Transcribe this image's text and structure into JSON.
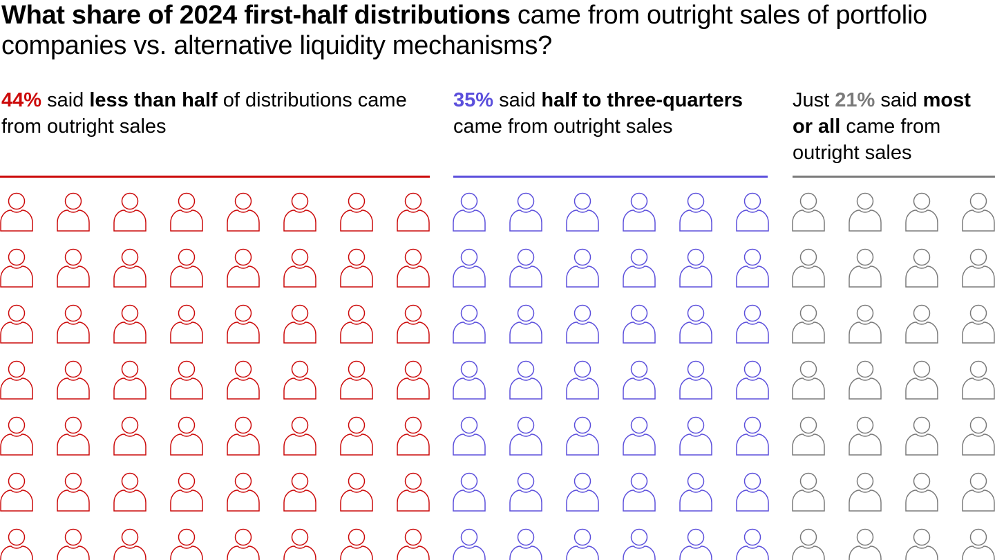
{
  "title": {
    "bold": "What share of 2024 first-half distributions",
    "rest": " came from outright sales of portfolio companies vs. alternative liquidity mechanisms?"
  },
  "groups": [
    {
      "prefix": "",
      "pct": "44%",
      "mid": " said ",
      "bold": "less than half",
      "rest": " of distributions came from outright sales",
      "color": "#cc0a0a"
    },
    {
      "prefix": "",
      "pct": "35%",
      "mid": " said ",
      "bold": "half to three-quarters",
      "rest": " came from outright sales",
      "color": "#5b4fdc"
    },
    {
      "prefix": "Just ",
      "pct": "21%",
      "mid": " said ",
      "bold": "most or all",
      "rest": " came from outright sales",
      "color": "#7a7a7a"
    }
  ],
  "chart_data": {
    "type": "pictogram",
    "categories": [
      "less than half",
      "half to three-quarters",
      "most or all"
    ],
    "values": [
      44,
      35,
      21
    ],
    "unit": "%",
    "colors": [
      "#cc0a0a",
      "#5b4fdc",
      "#7a7a7a"
    ]
  }
}
